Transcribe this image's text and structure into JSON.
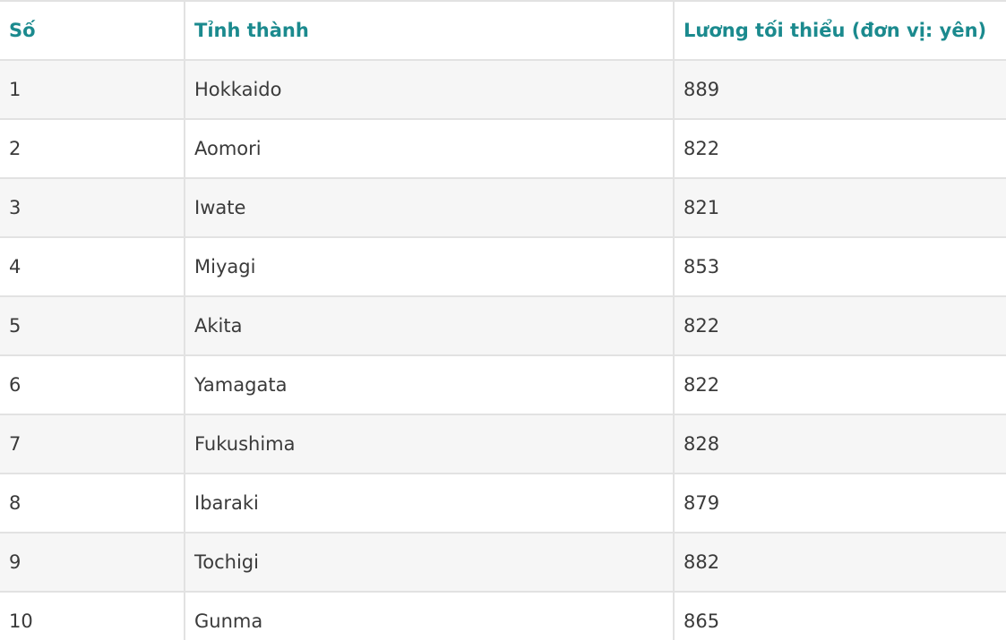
{
  "table": {
    "headers": [
      "Số",
      "Tỉnh thành",
      "Lương tối thiểu (đơn vị: yên)"
    ],
    "rows": [
      [
        "1",
        "Hokkaido",
        "889"
      ],
      [
        "2",
        "Aomori",
        "822"
      ],
      [
        "3",
        "Iwate",
        "821"
      ],
      [
        "4",
        "Miyagi",
        "853"
      ],
      [
        "5",
        "Akita",
        "822"
      ],
      [
        "6",
        "Yamagata",
        "822"
      ],
      [
        "7",
        "Fukushima",
        "828"
      ],
      [
        "8",
        "Ibaraki",
        "879"
      ],
      [
        "9",
        "Tochigi",
        "882"
      ],
      [
        "10",
        "Gunma",
        "865"
      ]
    ]
  },
  "colors": {
    "header_text": "#1b8a8e",
    "body_text": "#3a3a3a",
    "stripe": "#f6f6f6",
    "border": "#e2e2e2"
  }
}
